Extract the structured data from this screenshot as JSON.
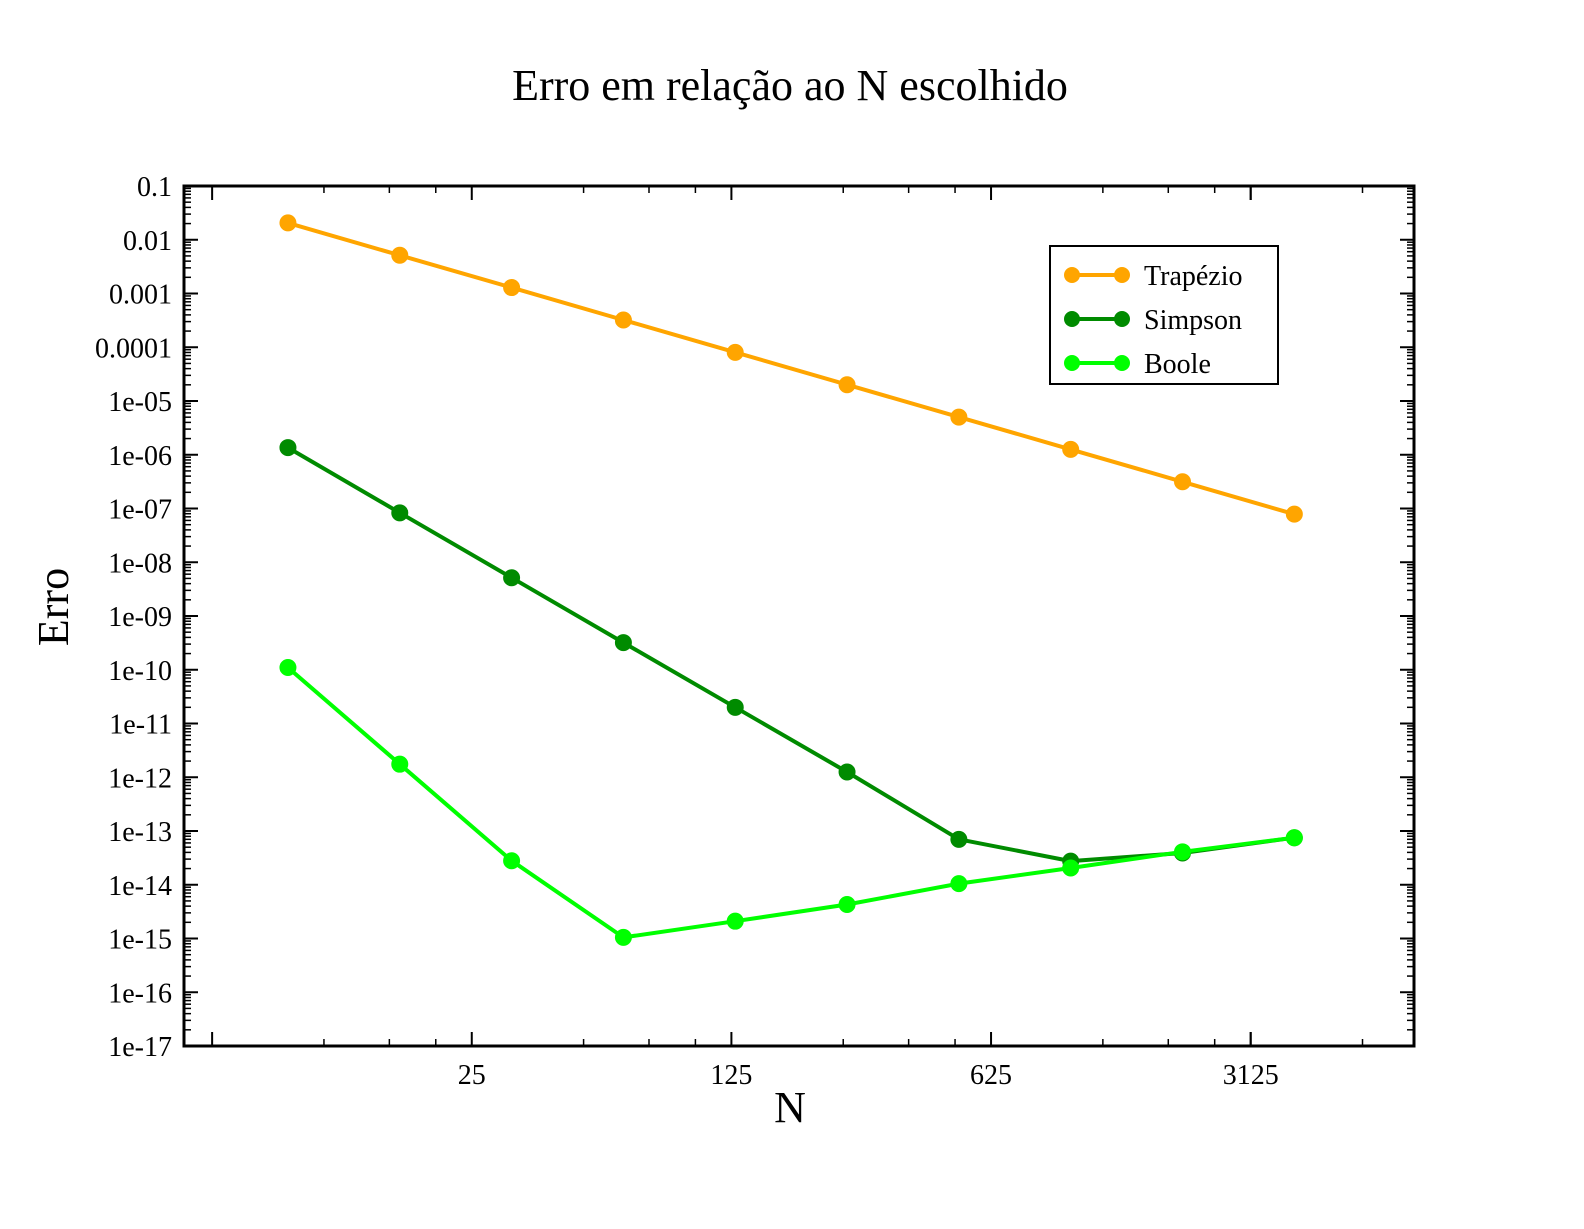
{
  "chart_data": {
    "type": "line",
    "title": "Erro em relação ao N escolhido",
    "xlabel": "N",
    "ylabel": "Erro",
    "x_scale": "log",
    "y_scale": "log",
    "xlim": [
      4.2,
      8600
    ],
    "ylim": [
      1e-17,
      0.1
    ],
    "x_tick_labels": [
      "25",
      "125",
      "625",
      "3125"
    ],
    "x_tick_values": [
      25,
      125,
      625,
      3125
    ],
    "y_tick_labels": [
      "0.1",
      "0.01",
      "0.001",
      "0.0001",
      "1e-05",
      "1e-06",
      "1e-07",
      "1e-08",
      "1e-09",
      "1e-10",
      "1e-11",
      "1e-12",
      "1e-13",
      "1e-14",
      "1e-15",
      "1e-16",
      "1e-17"
    ],
    "y_tick_values": [
      0.1,
      0.01,
      0.001,
      0.0001,
      1e-05,
      1e-06,
      1e-07,
      1e-08,
      1e-09,
      1e-10,
      1e-11,
      1e-12,
      1e-13,
      1e-14,
      1e-15,
      1e-16,
      1e-17
    ],
    "x": [
      8,
      16,
      32,
      64,
      128,
      256,
      512,
      1024,
      2048,
      4096
    ],
    "series": [
      {
        "name": "Trapézio",
        "color": "#ffa500",
        "values": [
          0.0206,
          0.00514,
          0.00129,
          0.000322,
          8.04e-05,
          2.01e-05,
          5.02e-06,
          1.26e-06,
          3.14e-07,
          7.85e-08
        ]
      },
      {
        "name": "Simpson",
        "color": "#008b00",
        "values": [
          1.36e-06,
          8.3e-08,
          5.15e-09,
          3.2e-10,
          2e-11,
          1.25e-12,
          7e-14,
          2.75e-14,
          3.9e-14,
          7.5e-14
        ]
      },
      {
        "name": "Boole",
        "color": "#00ff00",
        "values": [
          1.1e-10,
          1.75e-12,
          2.8e-14,
          1.05e-15,
          2.1e-15,
          4.3e-15,
          1.05e-14,
          2.05e-14,
          4.1e-14,
          7.5e-14
        ]
      }
    ],
    "legend_position": "top-right",
    "grid": false
  }
}
